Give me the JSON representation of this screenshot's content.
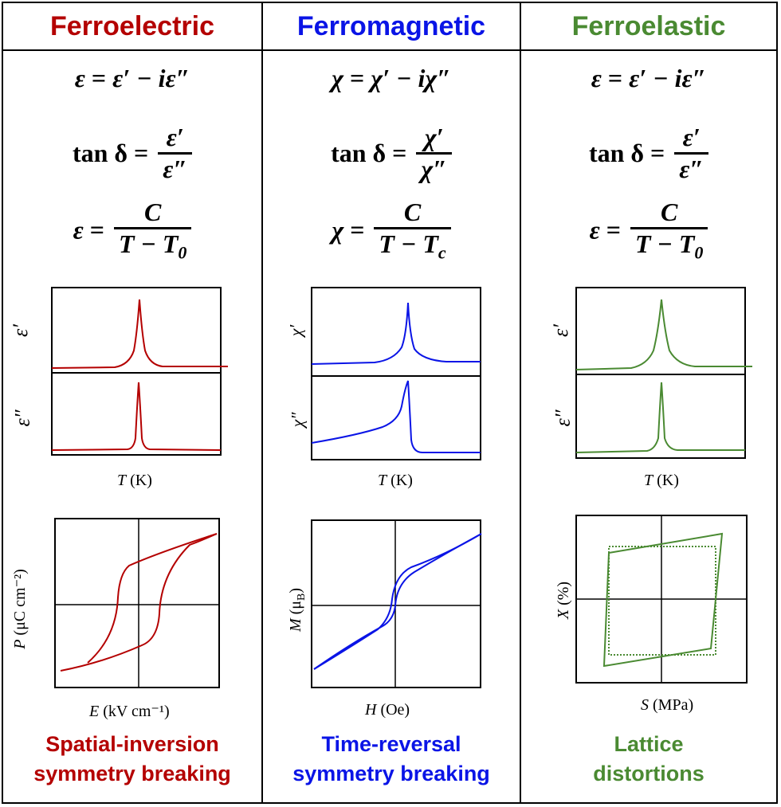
{
  "columns": [
    {
      "id": "ferroelectric",
      "title": "Ferroelectric",
      "color": "#b40000",
      "eq1": {
        "lhs": "ε",
        "rhs": "ε′ − iε″"
      },
      "eq2": {
        "lhs": "tan δ",
        "num": "ε′",
        "den": "ε″"
      },
      "eq3": {
        "lhs": "ε",
        "num": "C",
        "den": "T − T",
        "den_sub": "0"
      },
      "plot_top_label": "ε′",
      "plot_bottom_label": "ε″",
      "plot_xlabel_var": "T",
      "plot_xlabel_unit": " (K)",
      "loop_ylabel_var": "P",
      "loop_ylabel_unit": " (μC cm⁻²)",
      "loop_xlabel_var": "E",
      "loop_xlabel_unit": " (kV cm⁻¹)",
      "footer_line1": "Spatial-inversion",
      "footer_line2": "symmetry breaking"
    },
    {
      "id": "ferromagnetic",
      "title": "Ferromagnetic",
      "color": "#0a14e6",
      "eq1": {
        "lhs": "χ",
        "rhs": "χ′ − iχ″"
      },
      "eq2": {
        "lhs": "tan δ",
        "num": "χ′",
        "den": "χ″"
      },
      "eq3": {
        "lhs": "χ",
        "num": "C",
        "den": "T − T",
        "den_sub": "c"
      },
      "plot_top_label": "χ′",
      "plot_bottom_label": "χ″",
      "plot_xlabel_var": "T",
      "plot_xlabel_unit": " (K)",
      "loop_ylabel_var": "M",
      "loop_ylabel_unit": " (μ",
      "loop_ylabel_sub": "B",
      "loop_ylabel_close": ")",
      "loop_xlabel_var": "H",
      "loop_xlabel_unit": " (Oe)",
      "footer_line1": "Time-reversal",
      "footer_line2": "symmetry breaking"
    },
    {
      "id": "ferroelastic",
      "title": "Ferroelastic",
      "color": "#4a8a32",
      "eq1": {
        "lhs": "ε",
        "rhs": "ε′ − iε″"
      },
      "eq2": {
        "lhs": "tan δ",
        "num": "ε′",
        "den": "ε″"
      },
      "eq3": {
        "lhs": "ε",
        "num": "C",
        "den": "T − T",
        "den_sub": "0"
      },
      "plot_top_label": "ε′",
      "plot_bottom_label": "ε″",
      "plot_xlabel_var": "T",
      "plot_xlabel_unit": " (K)",
      "loop_ylabel_var": "X",
      "loop_ylabel_unit": " (%)",
      "loop_xlabel_var": "S",
      "loop_xlabel_unit": " (MPa)",
      "footer_line1": "Lattice",
      "footer_line2": "distortions"
    }
  ],
  "eq_equals": "=",
  "colors": {
    "border": "#000000",
    "background": "#ffffff"
  }
}
